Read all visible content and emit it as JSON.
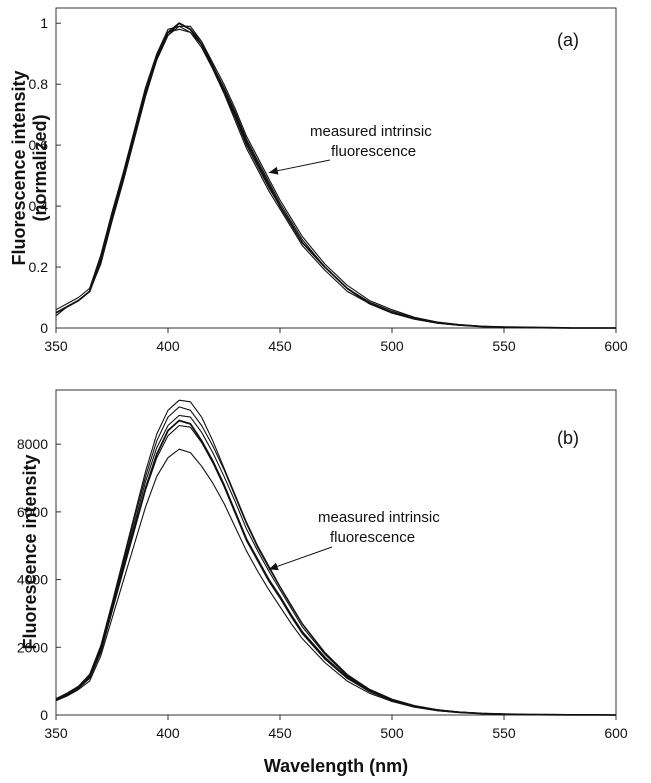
{
  "chart_data": [
    {
      "type": "line",
      "panel_label": "(a)",
      "ylabel_lines": [
        "Fluorescence intensity",
        "(normalized)"
      ],
      "xlim": [
        350,
        600
      ],
      "ylim": [
        0,
        1.05
      ],
      "xticks": [
        350,
        400,
        450,
        500,
        550,
        600
      ],
      "xtick_labels": [
        "350",
        "400",
        "450",
        "500",
        "550",
        "600"
      ],
      "yticks": [
        0,
        0.2,
        0.4,
        0.6,
        0.8,
        1.0
      ],
      "ytick_labels": [
        "0",
        "0.2",
        "0.4",
        "0.6",
        "0.8",
        "1"
      ],
      "annotation": [
        "measured intrinsic",
        "fluorescence"
      ],
      "arrow_target": [
        445,
        0.51
      ],
      "x": [
        350,
        355,
        360,
        365,
        370,
        375,
        380,
        385,
        390,
        395,
        400,
        405,
        410,
        415,
        420,
        425,
        430,
        435,
        440,
        445,
        450,
        455,
        460,
        470,
        480,
        490,
        500,
        510,
        520,
        530,
        540,
        550,
        560,
        570,
        580,
        590,
        600
      ],
      "series": [
        {
          "values": [
            0.05,
            0.07,
            0.09,
            0.12,
            0.22,
            0.36,
            0.49,
            0.63,
            0.77,
            0.89,
            0.97,
            1.0,
            0.98,
            0.93,
            0.86,
            0.78,
            0.7,
            0.61,
            0.54,
            0.47,
            0.4,
            0.34,
            0.28,
            0.2,
            0.13,
            0.08,
            0.05,
            0.03,
            0.017,
            0.01,
            0.005,
            0.003,
            0.002,
            0.001,
            0.0,
            0.0,
            0.0
          ]
        },
        {
          "values": [
            0.06,
            0.08,
            0.1,
            0.13,
            0.24,
            0.38,
            0.51,
            0.65,
            0.79,
            0.9,
            0.98,
            0.99,
            0.97,
            0.92,
            0.85,
            0.77,
            0.68,
            0.59,
            0.52,
            0.45,
            0.39,
            0.33,
            0.27,
            0.19,
            0.12,
            0.08,
            0.05,
            0.03,
            0.016,
            0.009,
            0.005,
            0.003,
            0.002,
            0.001,
            0.0,
            0.0,
            0.0
          ]
        },
        {
          "values": [
            0.04,
            0.07,
            0.09,
            0.12,
            0.21,
            0.35,
            0.48,
            0.62,
            0.76,
            0.88,
            0.96,
            0.99,
            0.99,
            0.94,
            0.87,
            0.8,
            0.72,
            0.63,
            0.56,
            0.49,
            0.42,
            0.36,
            0.3,
            0.21,
            0.14,
            0.09,
            0.06,
            0.035,
            0.02,
            0.011,
            0.006,
            0.003,
            0.002,
            0.001,
            0.0,
            0.0,
            0.0
          ]
        },
        {
          "values": [
            0.05,
            0.07,
            0.09,
            0.12,
            0.23,
            0.37,
            0.5,
            0.64,
            0.78,
            0.89,
            0.97,
            0.98,
            0.97,
            0.93,
            0.85,
            0.77,
            0.69,
            0.6,
            0.53,
            0.46,
            0.4,
            0.34,
            0.28,
            0.2,
            0.13,
            0.08,
            0.05,
            0.03,
            0.017,
            0.01,
            0.005,
            0.003,
            0.002,
            0.001,
            0.0,
            0.0,
            0.0
          ]
        },
        {
          "values": [
            0.05,
            0.07,
            0.09,
            0.12,
            0.22,
            0.36,
            0.49,
            0.63,
            0.77,
            0.88,
            0.96,
            1.0,
            0.98,
            0.94,
            0.86,
            0.79,
            0.71,
            0.62,
            0.55,
            0.48,
            0.41,
            0.35,
            0.29,
            0.2,
            0.13,
            0.085,
            0.055,
            0.032,
            0.018,
            0.01,
            0.005,
            0.003,
            0.002,
            0.001,
            0.0,
            0.0,
            0.0
          ]
        }
      ]
    },
    {
      "type": "line",
      "panel_label": "(b)",
      "ylabel_lines": [
        "Fluorescence intensity"
      ],
      "xlabel": "Wavelength (nm)",
      "xlim": [
        350,
        600
      ],
      "ylim": [
        0,
        9600
      ],
      "xticks": [
        350,
        400,
        450,
        500,
        550,
        600
      ],
      "xtick_labels": [
        "350",
        "400",
        "450",
        "500",
        "550",
        "600"
      ],
      "yticks": [
        0,
        2000,
        4000,
        6000,
        8000
      ],
      "ytick_labels": [
        "0",
        "2000",
        "4000",
        "6000",
        "8000"
      ],
      "annotation": [
        "measured intrinsic",
        "fluorescence"
      ],
      "arrow_target": [
        445,
        4300
      ],
      "x": [
        350,
        355,
        360,
        365,
        370,
        375,
        380,
        385,
        390,
        395,
        400,
        405,
        410,
        415,
        420,
        425,
        430,
        435,
        440,
        445,
        450,
        455,
        460,
        470,
        480,
        490,
        500,
        510,
        520,
        530,
        540,
        550,
        560,
        570,
        580,
        590,
        600
      ],
      "series": [
        {
          "values": [
            450,
            600,
            800,
            1100,
            1900,
            3100,
            4300,
            5500,
            6700,
            7700,
            8400,
            8700,
            8600,
            8100,
            7500,
            6800,
            6000,
            5200,
            4600,
            4000,
            3500,
            2950,
            2450,
            1700,
            1100,
            700,
            430,
            250,
            140,
            80,
            45,
            25,
            15,
            8,
            4,
            2,
            0
          ]
        },
        {
          "values": [
            480,
            650,
            850,
            1200,
            2050,
            3300,
            4600,
            5900,
            7200,
            8300,
            9000,
            9300,
            9250,
            8800,
            8100,
            7300,
            6500,
            5700,
            5000,
            4400,
            3800,
            3250,
            2700,
            1850,
            1200,
            760,
            470,
            280,
            160,
            90,
            50,
            28,
            16,
            9,
            4,
            2,
            0
          ]
        },
        {
          "values": [
            420,
            560,
            750,
            1000,
            1750,
            2850,
            3950,
            5050,
            6150,
            7050,
            7600,
            7850,
            7750,
            7350,
            6850,
            6250,
            5550,
            4850,
            4250,
            3700,
            3200,
            2700,
            2250,
            1550,
            1000,
            640,
            400,
            230,
            130,
            75,
            40,
            22,
            13,
            7,
            3,
            1,
            0
          ]
        },
        {
          "values": [
            460,
            620,
            820,
            1150,
            1950,
            3150,
            4400,
            5650,
            6900,
            7900,
            8550,
            8850,
            8800,
            8350,
            7750,
            7050,
            6300,
            5500,
            4850,
            4250,
            3700,
            3150,
            2600,
            1800,
            1150,
            730,
            450,
            265,
            150,
            85,
            47,
            26,
            15,
            8,
            4,
            2,
            0
          ]
        },
        {
          "values": [
            440,
            590,
            790,
            1080,
            1850,
            3050,
            4250,
            5450,
            6650,
            7600,
            8250,
            8550,
            8500,
            8050,
            7450,
            6750,
            5950,
            5150,
            4550,
            3950,
            3450,
            2900,
            2400,
            1650,
            1080,
            690,
            420,
            245,
            138,
            78,
            43,
            24,
            14,
            7,
            3,
            1,
            0
          ]
        },
        {
          "values": [
            470,
            630,
            830,
            1170,
            2000,
            3250,
            4500,
            5800,
            7050,
            8100,
            8800,
            9100,
            9000,
            8550,
            7950,
            7250,
            6450,
            5650,
            4950,
            4350,
            3780,
            3220,
            2680,
            1830,
            1180,
            750,
            460,
            270,
            155,
            88,
            48,
            27,
            15,
            8,
            4,
            2,
            0
          ]
        }
      ]
    }
  ]
}
